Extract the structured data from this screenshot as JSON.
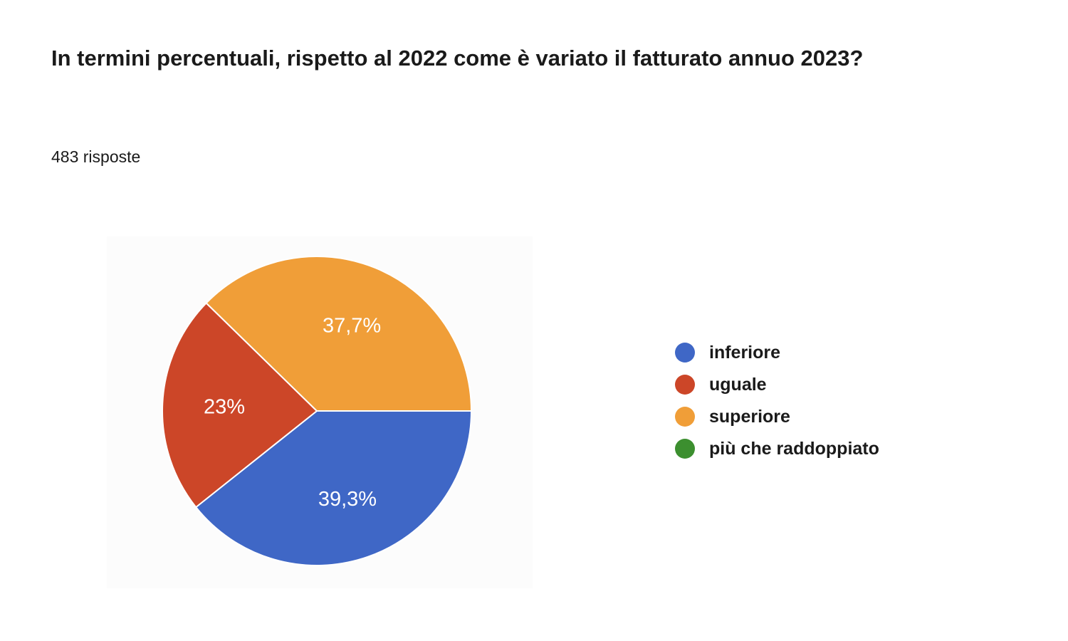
{
  "title": "In termini percentuali, rispetto al 2022 come è variato il fatturato annuo 2023?",
  "responses_label": "483 risposte",
  "chart_data": {
    "type": "pie",
    "slices": [
      {
        "label": "inferiore",
        "value": 39.3,
        "display": "39,3%",
        "color": "#3f67c6"
      },
      {
        "label": "uguale",
        "value": 23.0,
        "display": "23%",
        "color": "#cc4628"
      },
      {
        "label": "superiore",
        "value": 37.7,
        "display": "37,7%",
        "color": "#f09e38"
      },
      {
        "label": "più che raddoppiato",
        "value": 0,
        "display": "",
        "color": "#3c8f2f"
      }
    ],
    "legend_position": "right"
  }
}
